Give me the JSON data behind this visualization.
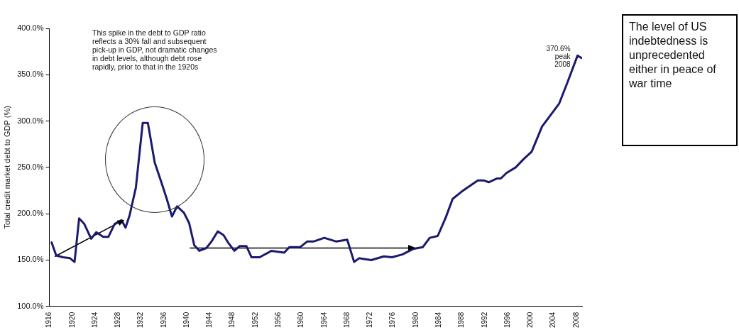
{
  "chart_data": {
    "type": "line",
    "ylabel": "Total credit market debt to GDP (%)",
    "xlim": [
      1916,
      2009
    ],
    "xticks": [
      1916,
      1920,
      1924,
      1928,
      1932,
      1936,
      1940,
      1944,
      1948,
      1952,
      1956,
      1960,
      1964,
      1968,
      1972,
      1976,
      1980,
      1984,
      1988,
      1992,
      1996,
      2000,
      2004,
      2008
    ],
    "ylim": [
      100,
      400
    ],
    "yticks": [
      {
        "value": 100,
        "label": "100.0%"
      },
      {
        "value": 150,
        "label": "150.0%"
      },
      {
        "value": 200,
        "label": "200.0%"
      },
      {
        "value": 250,
        "label": "250.0%"
      },
      {
        "value": 300,
        "label": "300.0%"
      },
      {
        "value": 350,
        "label": "350.0%"
      },
      {
        "value": 400,
        "label": "400.0%"
      }
    ],
    "grid": false,
    "legend": false,
    "line_style": "solid",
    "series": [
      {
        "color": "#1a1a6e",
        "x": [
          1916.4,
          1917.2,
          1918.4,
          1919.6,
          1920.4,
          1921.2,
          1922.1,
          1923.3,
          1924.2,
          1925.4,
          1926.3,
          1927.4,
          1928.6,
          1929.3,
          1930,
          1931.1,
          1932.3,
          1933.2,
          1934.4,
          1935.5,
          1936.5,
          1937.4,
          1938.3,
          1939.5,
          1940.4,
          1941.3,
          1942.2,
          1943.4,
          1944.3,
          1945.4,
          1946.4,
          1947.3,
          1948.3,
          1949.2,
          1950.4,
          1951.3,
          1952.7,
          1954.8,
          1957,
          1957.9,
          1959.8,
          1961,
          1962.1,
          1964,
          1966.1,
          1968,
          1969.2,
          1970.1,
          1972.2,
          1974.4,
          1975.8,
          1977.6,
          1979.5,
          1981.2,
          1982.4,
          1983.8,
          1985.2,
          1986.4,
          1988,
          1989.4,
          1990.8,
          1991.8,
          1992.7,
          1994.1,
          1994.8,
          1995.8,
          1997.4,
          1998.8,
          2000.2,
          2002,
          2005,
          2006.4,
          2008.2,
          2008.9
        ],
        "values": [
          169,
          155,
          153,
          152,
          148,
          195,
          189,
          173,
          180,
          175,
          175,
          189,
          193,
          185,
          198,
          228,
          298,
          298,
          255,
          235,
          216,
          197,
          208,
          201,
          190,
          166,
          160,
          163,
          170,
          181,
          177,
          168,
          160,
          165,
          165,
          153,
          153,
          160,
          158,
          164,
          164,
          170,
          170,
          174,
          170,
          172,
          148,
          152,
          150,
          154,
          153,
          156,
          162,
          164,
          174,
          176,
          196,
          216,
          224,
          230,
          236,
          236,
          234,
          238,
          238,
          244,
          250,
          259,
          267,
          294,
          319,
          341,
          370.6,
          368
        ]
      },
      {
        "type": "line",
        "color": "#000000",
        "x": [
          1917,
          1928.6
        ],
        "values": [
          154,
          192
        ]
      },
      {
        "type": "line",
        "color": "#000000",
        "x": [
          1940.6,
          1979.2
        ],
        "values": [
          163,
          163
        ]
      }
    ],
    "annotations": [
      "This spike in the debt to GDP ratio reflects a 30% fall and subsequent pick-up in GDP, not dramatic changes in debt levels, although debt rose rapidly, prior to that in the 1920s",
      {
        "text": "370.6% peak 2008",
        "x": 2008.2,
        "y": 370.6
      },
      "The level of US indebtedness is unprecedented either in peace of war time"
    ]
  }
}
